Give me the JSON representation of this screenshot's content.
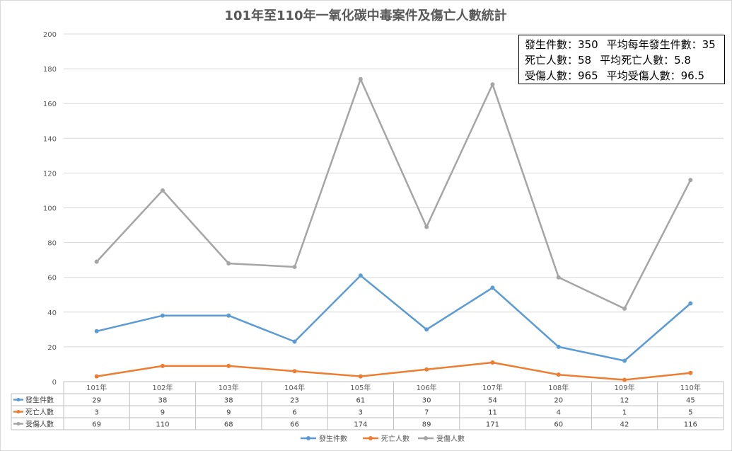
{
  "chart_data": {
    "type": "line",
    "title": "101年至110年一氧化碳中毒案件及傷亡人數統計",
    "categories": [
      "101年",
      "102年",
      "103年",
      "104年",
      "105年",
      "106年",
      "107年",
      "108年",
      "109年",
      "110年"
    ],
    "series": [
      {
        "name": "發生件數",
        "color": "#5B9BD5",
        "values": [
          29,
          38,
          38,
          23,
          61,
          30,
          54,
          20,
          12,
          45
        ]
      },
      {
        "name": "死亡人數",
        "color": "#ED7D31",
        "values": [
          3,
          9,
          9,
          6,
          3,
          7,
          11,
          4,
          1,
          5
        ]
      },
      {
        "name": "受傷人數",
        "color": "#A5A5A5",
        "values": [
          69,
          110,
          68,
          66,
          174,
          89,
          171,
          60,
          42,
          116
        ]
      }
    ],
    "ylim": [
      0,
      200
    ],
    "yticks": [
      0,
      20,
      40,
      60,
      80,
      100,
      120,
      140,
      160,
      180,
      200
    ],
    "grid": true,
    "legend": "bottom",
    "data_table": true
  },
  "stats": {
    "line1_a": "發生件數：350",
    "line1_b": "平均每年發生件數：35",
    "line2_a": "死亡人數：58",
    "line2_b": "平均死亡人數：5.8",
    "line3_a": "受傷人數：965",
    "line3_b": "平均受傷人數：96.5"
  }
}
